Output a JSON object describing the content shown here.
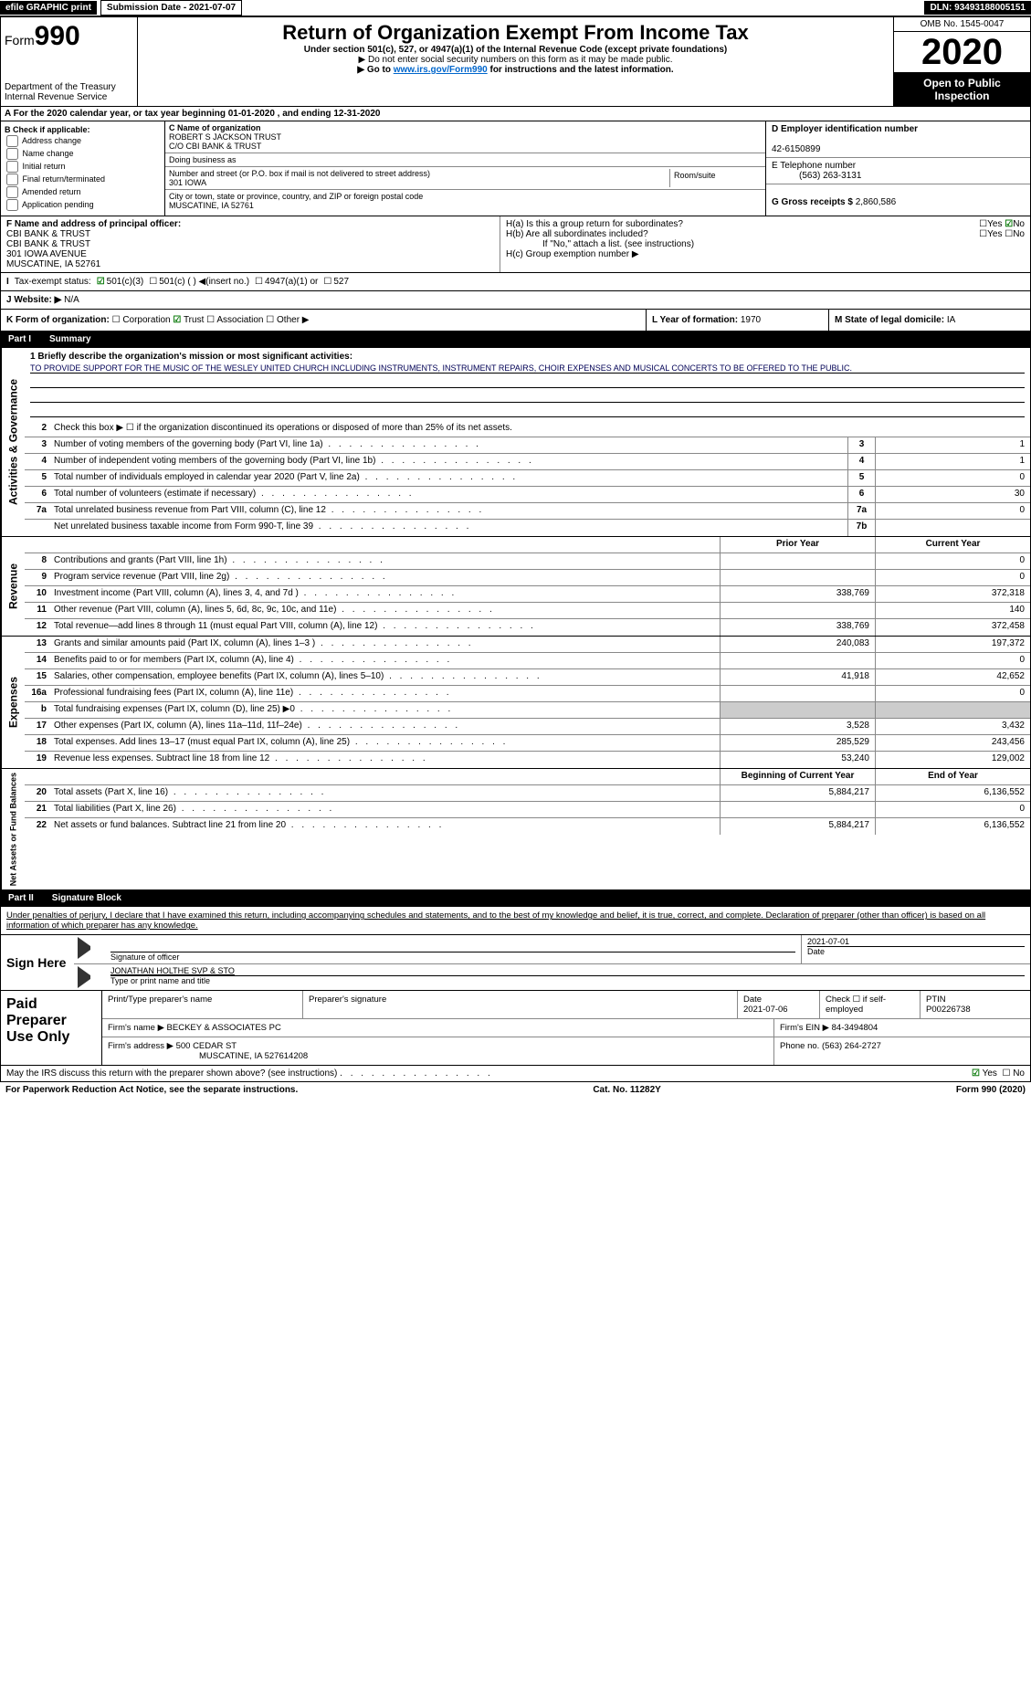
{
  "topbar": {
    "efile": "efile GRAPHIC print",
    "submission_label": "Submission Date - 2021-07-07",
    "dln_label": "DLN: 93493188005151"
  },
  "header": {
    "form_prefix": "Form",
    "form_number": "990",
    "dept": "Department of the Treasury",
    "irs": "Internal Revenue Service",
    "title": "Return of Organization Exempt From Income Tax",
    "subtitle": "Under section 501(c), 527, or 4947(a)(1) of the Internal Revenue Code (except private foundations)",
    "note1": "▶ Do not enter social security numbers on this form as it may be made public.",
    "note2_pre": "▶ Go to ",
    "note2_link": "www.irs.gov/Form990",
    "note2_post": " for instructions and the latest information.",
    "omb": "OMB No. 1545-0047",
    "year": "2020",
    "inspection": "Open to Public Inspection"
  },
  "rowA": "A For the 2020 calendar year, or tax year beginning 01-01-2020   , and ending 12-31-2020",
  "B": {
    "label": "B Check if applicable:",
    "items": [
      "Address change",
      "Name change",
      "Initial return",
      "Final return/terminated",
      "Amended return",
      "Application pending"
    ]
  },
  "C": {
    "label": "C Name of organization",
    "name1": "ROBERT S JACKSON TRUST",
    "name2": "C/O CBI BANK & TRUST",
    "dba_label": "Doing business as",
    "addr_label": "Number and street (or P.O. box if mail is not delivered to street address)",
    "room_label": "Room/suite",
    "addr": "301 IOWA",
    "city_label": "City or town, state or province, country, and ZIP or foreign postal code",
    "city": "MUSCATINE, IA  52761"
  },
  "D": {
    "label": "D Employer identification number",
    "value": "42-6150899"
  },
  "E": {
    "label": "E Telephone number",
    "value": "(563) 263-3131"
  },
  "G": {
    "label": "G Gross receipts $",
    "value": "2,860,586"
  },
  "F": {
    "label": "F  Name and address of principal officer:",
    "l1": "CBI BANK & TRUST",
    "l2": "CBI BANK & TRUST",
    "l3": "301 IOWA AVENUE",
    "l4": "MUSCATINE, IA  52761"
  },
  "H": {
    "a": "H(a)  Is this a group return for subordinates?",
    "b": "H(b)  Are all subordinates included?",
    "note": "If \"No,\" attach a list. (see instructions)",
    "c": "H(c)  Group exemption number ▶",
    "yes": "Yes",
    "no": "No"
  },
  "I": {
    "label": "Tax-exempt status:",
    "opts": [
      "501(c)(3)",
      "501(c) (  ) ◀(insert no.)",
      "4947(a)(1) or",
      "527"
    ]
  },
  "J": {
    "label": "J  Website: ▶",
    "value": "N/A"
  },
  "K": {
    "label": "K Form of organization:",
    "opts": [
      "Corporation",
      "Trust",
      "Association",
      "Other ▶"
    ]
  },
  "L": {
    "label": "L Year of formation:",
    "value": "1970"
  },
  "M": {
    "label": "M State of legal domicile:",
    "value": "IA"
  },
  "part1": {
    "title": "Part I",
    "name": "Summary",
    "q1": "1  Briefly describe the organization's mission or most significant activities:",
    "mission": "TO PROVIDE SUPPORT FOR THE MUSIC OF THE WESLEY UNITED CHURCH INCLUDING INSTRUMENTS, INSTRUMENT REPAIRS, CHOIR EXPENSES AND MUSICAL CONCERTS TO BE OFFERED TO THE PUBLIC.",
    "q2": "Check this box ▶ ☐ if the organization discontinued its operations or disposed of more than 25% of its net assets.",
    "rows_gov": [
      {
        "n": "3",
        "d": "Number of voting members of the governing body (Part VI, line 1a)",
        "b": "3",
        "v": "1"
      },
      {
        "n": "4",
        "d": "Number of independent voting members of the governing body (Part VI, line 1b)",
        "b": "4",
        "v": "1"
      },
      {
        "n": "5",
        "d": "Total number of individuals employed in calendar year 2020 (Part V, line 2a)",
        "b": "5",
        "v": "0"
      },
      {
        "n": "6",
        "d": "Total number of volunteers (estimate if necessary)",
        "b": "6",
        "v": "30"
      },
      {
        "n": "7a",
        "d": "Total unrelated business revenue from Part VIII, column (C), line 12",
        "b": "7a",
        "v": "0"
      },
      {
        "n": "",
        "d": "Net unrelated business taxable income from Form 990-T, line 39",
        "b": "7b",
        "v": ""
      }
    ],
    "col_prior": "Prior Year",
    "col_current": "Current Year",
    "rows_rev": [
      {
        "n": "8",
        "d": "Contributions and grants (Part VIII, line 1h)",
        "p": "",
        "c": "0"
      },
      {
        "n": "9",
        "d": "Program service revenue (Part VIII, line 2g)",
        "p": "",
        "c": "0"
      },
      {
        "n": "10",
        "d": "Investment income (Part VIII, column (A), lines 3, 4, and 7d )",
        "p": "338,769",
        "c": "372,318"
      },
      {
        "n": "11",
        "d": "Other revenue (Part VIII, column (A), lines 5, 6d, 8c, 9c, 10c, and 11e)",
        "p": "",
        "c": "140"
      },
      {
        "n": "12",
        "d": "Total revenue—add lines 8 through 11 (must equal Part VIII, column (A), line 12)",
        "p": "338,769",
        "c": "372,458"
      }
    ],
    "rows_exp": [
      {
        "n": "13",
        "d": "Grants and similar amounts paid (Part IX, column (A), lines 1–3 )",
        "p": "240,083",
        "c": "197,372"
      },
      {
        "n": "14",
        "d": "Benefits paid to or for members (Part IX, column (A), line 4)",
        "p": "",
        "c": "0"
      },
      {
        "n": "15",
        "d": "Salaries, other compensation, employee benefits (Part IX, column (A), lines 5–10)",
        "p": "41,918",
        "c": "42,652"
      },
      {
        "n": "16a",
        "d": "Professional fundraising fees (Part IX, column (A), line 11e)",
        "p": "",
        "c": "0"
      },
      {
        "n": "b",
        "d": "Total fundraising expenses (Part IX, column (D), line 25) ▶0",
        "p": "",
        "c": "",
        "grey": true
      },
      {
        "n": "17",
        "d": "Other expenses (Part IX, column (A), lines 11a–11d, 11f–24e)",
        "p": "3,528",
        "c": "3,432"
      },
      {
        "n": "18",
        "d": "Total expenses. Add lines 13–17 (must equal Part IX, column (A), line 25)",
        "p": "285,529",
        "c": "243,456"
      },
      {
        "n": "19",
        "d": "Revenue less expenses. Subtract line 18 from line 12",
        "p": "53,240",
        "c": "129,002"
      }
    ],
    "col_begin": "Beginning of Current Year",
    "col_end": "End of Year",
    "rows_net": [
      {
        "n": "20",
        "d": "Total assets (Part X, line 16)",
        "p": "5,884,217",
        "c": "6,136,552"
      },
      {
        "n": "21",
        "d": "Total liabilities (Part X, line 26)",
        "p": "",
        "c": "0"
      },
      {
        "n": "22",
        "d": "Net assets or fund balances. Subtract line 21 from line 20",
        "p": "5,884,217",
        "c": "6,136,552"
      }
    ],
    "vlabels": {
      "gov": "Activities & Governance",
      "rev": "Revenue",
      "exp": "Expenses",
      "net": "Net Assets or Fund Balances"
    }
  },
  "part2": {
    "title": "Part II",
    "name": "Signature Block",
    "penalty": "Under penalties of perjury, I declare that I have examined this return, including accompanying schedules and statements, and to the best of my knowledge and belief, it is true, correct, and complete. Declaration of preparer (other than officer) is based on all information of which preparer has any knowledge."
  },
  "sign": {
    "here": "Sign Here",
    "sig_officer": "Signature of officer",
    "date": "Date",
    "date_val": "2021-07-01",
    "name": "JONATHAN HOLTHE  SVP & STO",
    "name_label": "Type or print name and title"
  },
  "paid": {
    "title": "Paid Preparer Use Only",
    "h1": "Print/Type preparer's name",
    "h2": "Preparer's signature",
    "h3": "Date",
    "h3v": "2021-07-06",
    "h4": "Check ☐ if self-employed",
    "h5": "PTIN",
    "h5v": "P00226738",
    "firm_label": "Firm's name    ▶",
    "firm": "BECKEY & ASSOCIATES PC",
    "ein_label": "Firm's EIN ▶",
    "ein": "84-3494804",
    "addr_label": "Firm's address ▶",
    "addr1": "500 CEDAR ST",
    "addr2": "MUSCATINE, IA  527614208",
    "phone_label": "Phone no.",
    "phone": "(563) 264-2727"
  },
  "footer": {
    "q": "May the IRS discuss this return with the preparer shown above? (see instructions)",
    "yes": "Yes",
    "no": "No",
    "paperwork": "For Paperwork Reduction Act Notice, see the separate instructions.",
    "cat": "Cat. No. 11282Y",
    "form": "Form 990 (2020)"
  }
}
